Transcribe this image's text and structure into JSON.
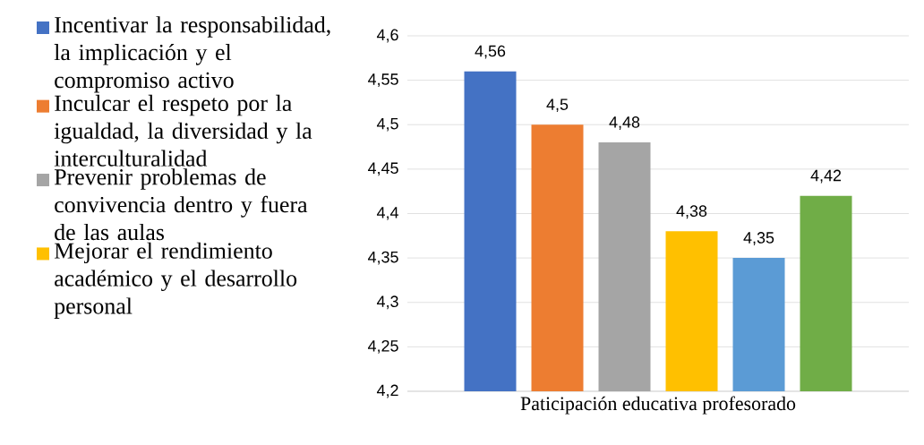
{
  "chart_data": {
    "type": "bar",
    "categories": [
      "Paticipación educativa profesorado"
    ],
    "series": [
      {
        "name": "Incentivar la responsabilidad, la implicación y el compromiso activo",
        "color": "#4472c4",
        "values": [
          4.56
        ],
        "value_labels": [
          "4,56"
        ]
      },
      {
        "name": "Inculcar el respeto por la igualdad, la diversidad y la interculturalidad",
        "color": "#ed7d31",
        "values": [
          4.5
        ],
        "value_labels": [
          "4,5"
        ]
      },
      {
        "name": "Prevenir problemas de convivencia dentro y fuera de las aulas",
        "color": "#a5a5a5",
        "values": [
          4.48
        ],
        "value_labels": [
          "4,48"
        ]
      },
      {
        "name": "Mejorar el rendimiento académico y el desarrollo personal",
        "color": "#ffc000",
        "values": [
          4.38
        ],
        "value_labels": [
          "4,38"
        ]
      },
      {
        "color": "#5b9bd5",
        "values": [
          4.35
        ],
        "value_labels": [
          "4,35"
        ]
      },
      {
        "color": "#70ad47",
        "values": [
          4.42
        ],
        "value_labels": [
          "4,42"
        ]
      }
    ],
    "ylim": [
      4.2,
      4.6
    ],
    "yticks": [
      {
        "value": 4.2,
        "label": "4,2"
      },
      {
        "value": 4.25,
        "label": "4,25"
      },
      {
        "value": 4.3,
        "label": "4,3"
      },
      {
        "value": 4.35,
        "label": "4,35"
      },
      {
        "value": 4.4,
        "label": "4,4"
      },
      {
        "value": 4.45,
        "label": "4,45"
      },
      {
        "value": 4.5,
        "label": "4,5"
      },
      {
        "value": 4.55,
        "label": "4,55"
      },
      {
        "value": 4.6,
        "label": "4,6"
      }
    ],
    "grid": "y",
    "legend": "left"
  }
}
